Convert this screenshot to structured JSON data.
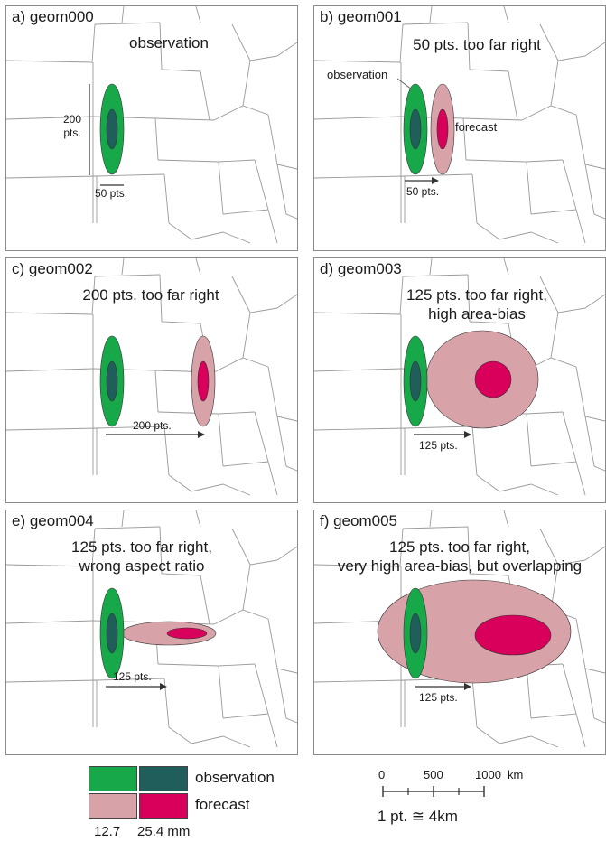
{
  "panels": [
    {
      "label": "a) geom000",
      "title_lines": [
        "observation"
      ],
      "shift": 0,
      "annotations": {
        "height": "200\npts.",
        "width": "50 pts.",
        "obs": "",
        "fcst": ""
      }
    },
    {
      "label": "b) geom001",
      "title_lines": [
        "50 pts. too far right"
      ],
      "shift": 50,
      "annotations": {
        "obs": "observation",
        "fcst": "forecast",
        "arrow": "50 pts."
      }
    },
    {
      "label": "c) geom002",
      "title_lines": [
        "200 pts. too far right"
      ],
      "shift": 200,
      "annotations": {
        "arrow": "200 pts."
      }
    },
    {
      "label": "d) geom003",
      "title_lines": [
        "125 pts. too far right,",
        "high area-bias"
      ],
      "shift": 125,
      "annotations": {
        "arrow": "125 pts."
      }
    },
    {
      "label": "e) geom004",
      "title_lines": [
        "125 pts. too far right,",
        "wrong aspect ratio"
      ],
      "shift": 125,
      "annotations": {
        "arrow": "125 pts."
      }
    },
    {
      "label": "f) geom005",
      "title_lines": [
        "125 pts. too far right,",
        "very high area-bias, but overlapping"
      ],
      "shift": 125,
      "annotations": {
        "arrow": "125 pts."
      }
    }
  ],
  "legend": {
    "observation": "observation",
    "forecast": "forecast",
    "thresholds": [
      "12.7",
      "25.4 mm"
    ],
    "colors": {
      "obs_outer": "#17a84a",
      "obs_inner": "#1f5e5a",
      "fcst_outer": "#d8a3a8",
      "fcst_inner": "#d8005a"
    }
  },
  "scale": {
    "ticks": [
      "0",
      "500",
      "1000"
    ],
    "unit": "km",
    "conversion": "1 pt. ≅ 4km"
  }
}
